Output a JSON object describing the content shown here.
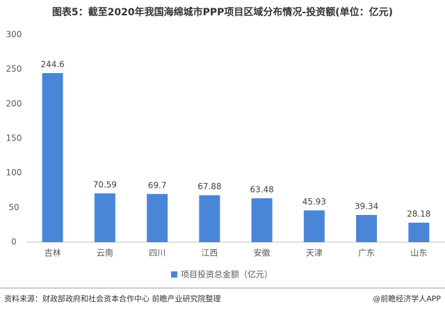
{
  "chart_data": {
    "type": "bar",
    "title": "图表5：截至2020年我国海绵城市PPP项目区域分布情况-投资额(单位：亿元)",
    "categories": [
      "吉林",
      "云南",
      "四川",
      "江西",
      "安徽",
      "天津",
      "广东",
      "山东"
    ],
    "series": [
      {
        "name": "项目投资总金额（亿元）",
        "color": "#4a86d8",
        "values": [
          244.6,
          70.59,
          69.7,
          67.88,
          63.48,
          45.93,
          39.34,
          28.18
        ]
      }
    ],
    "ylim": [
      0,
      300
    ],
    "yticks": [
      0,
      50,
      100,
      150,
      200,
      250,
      300
    ],
    "grid": false,
    "legend": "bottom",
    "source": "资料来源：财政部政府和社会资本合作中心 前瞻产业研究院整理",
    "credit": "@前瞻经济学人APP"
  }
}
